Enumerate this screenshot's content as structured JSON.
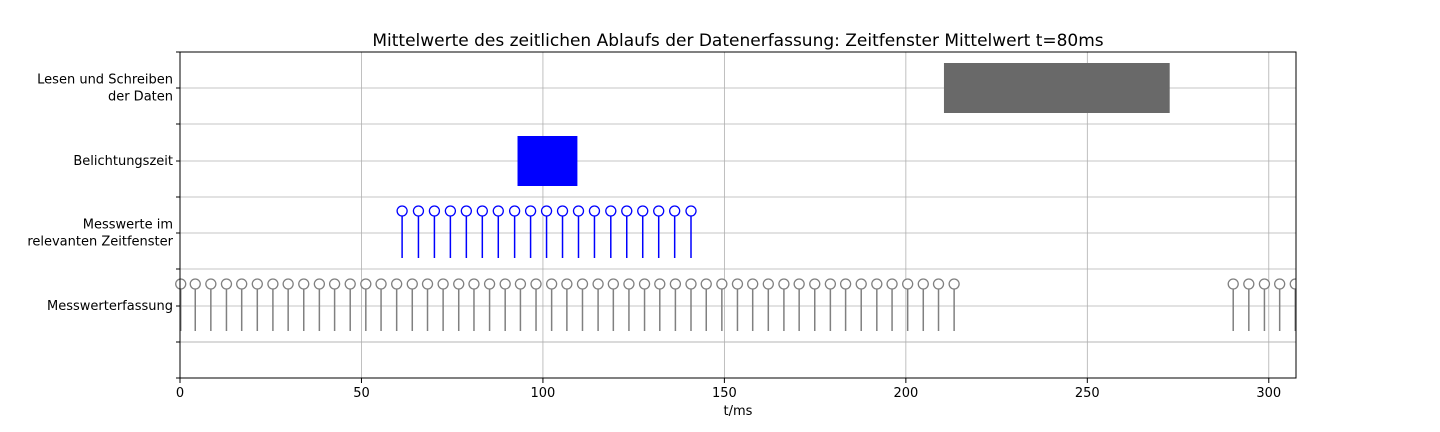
{
  "chart_data": {
    "type": "timeline",
    "title": "Mittelwerte des zeitlichen Ablaufs der Datenerfassung: Zeitfenster Mittelwert t=80ms",
    "xlabel": "t/ms",
    "ylabel": "",
    "xlim": [
      0,
      307.5
    ],
    "x_ticks": [
      0,
      50,
      100,
      150,
      200,
      250,
      300
    ],
    "grid": true,
    "rows": [
      {
        "label_lines": [
          "Lesen und Schreiben ",
          "der Daten"
        ]
      },
      {
        "label_lines": [
          "Belichtungszeit"
        ]
      },
      {
        "label_lines": [
          "Messwerte im ",
          "relevanten Zeitfenster"
        ]
      },
      {
        "label_lines": [
          "Messwerterfassung"
        ]
      }
    ],
    "bars": [
      {
        "row": 0,
        "start": 210.5,
        "end": 272.7,
        "color": "#696969"
      },
      {
        "row": 1,
        "start": 93.0,
        "end": 109.5,
        "color": "#0000ff"
      }
    ],
    "stems": [
      {
        "row": 2,
        "color": "#0000ff",
        "x": [
          61.2,
          65.7,
          70.1,
          74.5,
          78.9,
          83.3,
          87.7,
          92.2,
          96.6,
          101.0,
          105.4,
          109.8,
          114.2,
          118.7,
          123.1,
          127.5,
          131.9,
          136.3,
          140.8
        ]
      },
      {
        "row": 3,
        "color": "#808080",
        "x": [
          0.2,
          4.2,
          8.5,
          12.8,
          17.0,
          21.3,
          25.6,
          29.8,
          34.1,
          38.4,
          42.6,
          46.9,
          51.2,
          55.4,
          59.7,
          64.0,
          68.2,
          72.5,
          76.8,
          81.0,
          85.3,
          89.6,
          93.8,
          98.1,
          102.4,
          106.6,
          110.9,
          115.2,
          119.4,
          123.7,
          128.0,
          132.2,
          136.5,
          140.8,
          145.0,
          149.3,
          153.6,
          157.8,
          162.1,
          166.4,
          170.6,
          174.9,
          179.2,
          183.4,
          187.7,
          192.0,
          196.2,
          200.5,
          204.8,
          209.0,
          213.3,
          290.2,
          294.5,
          298.8,
          303.0,
          307.3
        ]
      }
    ]
  }
}
